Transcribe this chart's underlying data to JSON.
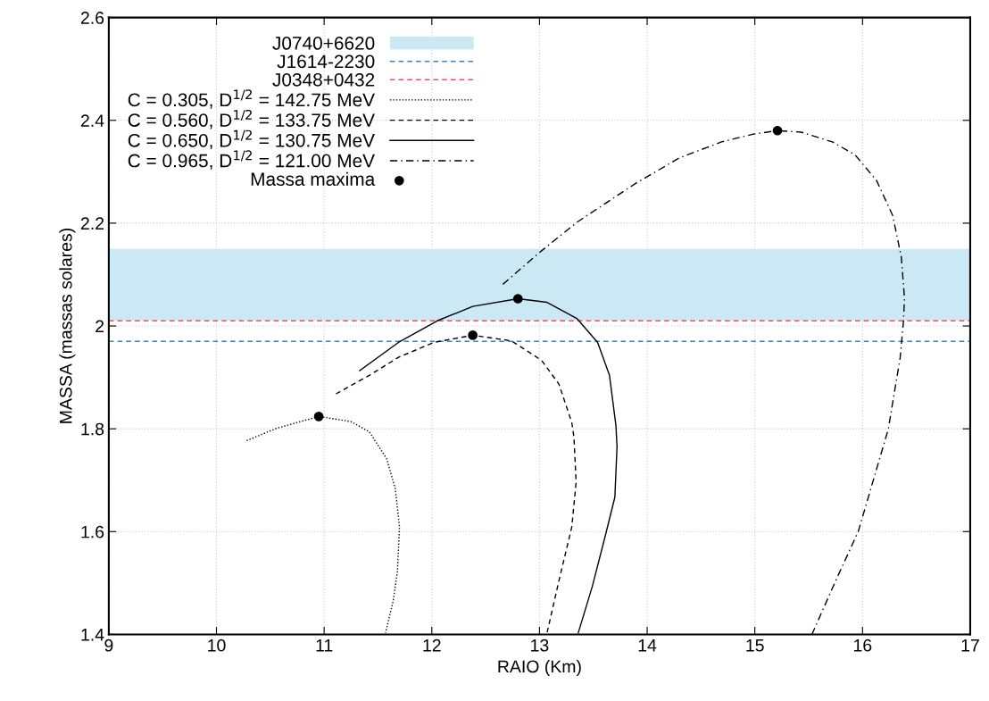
{
  "chart_data": {
    "type": "line",
    "xlabel": "RAIO (Km)",
    "ylabel": "MASSA (massas solares)",
    "xlim": [
      9,
      17
    ],
    "ylim": [
      1.4,
      2.6
    ],
    "xticks": [
      9,
      10,
      11,
      12,
      13,
      14,
      15,
      16,
      17
    ],
    "yticks": [
      1.4,
      1.6,
      1.8,
      2,
      2.2,
      2.4,
      2.6
    ],
    "grid": true,
    "legend": "top left",
    "marker": "none",
    "bands": [
      {
        "axis": "y",
        "from": 2.01,
        "to": 2.15,
        "label": "J0740+6620",
        "color": "#cbe8f5"
      }
    ],
    "ref_lines": [
      {
        "axis": "y",
        "value": 1.97,
        "label": "J1614-2230",
        "color": "#3d7fbf",
        "line_style": "dashed"
      },
      {
        "axis": "y",
        "value": 2.01,
        "label": "J0348+0432",
        "color": "#f0505a",
        "line_style": "dashed"
      }
    ],
    "series": [
      {
        "name": "C = 0.305, D$^{1/2}$ = 142.75 MeV",
        "color": "#000000",
        "line_style": "dotted",
        "x": [
          10.28,
          10.56,
          10.95,
          11.25,
          11.42,
          11.58,
          11.66,
          11.7,
          11.68,
          11.64,
          11.57
        ],
        "values": [
          1.777,
          1.801,
          1.824,
          1.814,
          1.794,
          1.742,
          1.684,
          1.609,
          1.522,
          1.464,
          1.403
        ]
      },
      {
        "name": "C = 0.560, D$^{1/2}$ = 133.75 MeV",
        "color": "#000000",
        "line_style": "dashed",
        "x": [
          11.11,
          11.42,
          11.69,
          12.02,
          12.38,
          12.74,
          13.02,
          13.18,
          13.3,
          13.32,
          13.34,
          13.3,
          13.18,
          13.07
        ],
        "values": [
          1.868,
          1.904,
          1.939,
          1.968,
          1.982,
          1.971,
          1.933,
          1.887,
          1.812,
          1.783,
          1.696,
          1.609,
          1.504,
          1.403
        ]
      },
      {
        "name": "C = 0.650, D$^{1/2}$ = 130.75 MeV",
        "color": "#000000",
        "line_style": "solid",
        "x": [
          11.33,
          11.69,
          12.05,
          12.38,
          12.8,
          13.07,
          13.35,
          13.54,
          13.65,
          13.71,
          13.72,
          13.7,
          13.61,
          13.49,
          13.36
        ],
        "values": [
          1.913,
          1.968,
          2.01,
          2.038,
          2.053,
          2.046,
          2.014,
          1.968,
          1.904,
          1.806,
          1.765,
          1.667,
          1.591,
          1.493,
          1.403
        ]
      },
      {
        "name": "C = 0.965, D$^{1/2}$ = 121.00 MeV",
        "color": "#000000",
        "line_style": "dashdot",
        "x": [
          12.66,
          13.0,
          13.35,
          13.89,
          14.3,
          14.69,
          14.98,
          15.21,
          15.43,
          15.72,
          15.93,
          16.13,
          16.28,
          16.36,
          16.39,
          16.38,
          16.35,
          16.24,
          16.11,
          15.96,
          15.75,
          15.53
        ],
        "values": [
          2.081,
          2.143,
          2.202,
          2.277,
          2.327,
          2.358,
          2.373,
          2.38,
          2.377,
          2.358,
          2.333,
          2.283,
          2.215,
          2.134,
          2.053,
          2.009,
          1.939,
          1.8,
          1.707,
          1.6,
          1.504,
          1.4
        ]
      },
      {
        "name": "Massa maxima",
        "type": "scatter",
        "marker": "circle",
        "color": "#000000",
        "x": [
          10.95,
          12.38,
          12.8,
          15.21
        ],
        "values": [
          1.824,
          1.982,
          2.053,
          2.38
        ]
      }
    ]
  }
}
